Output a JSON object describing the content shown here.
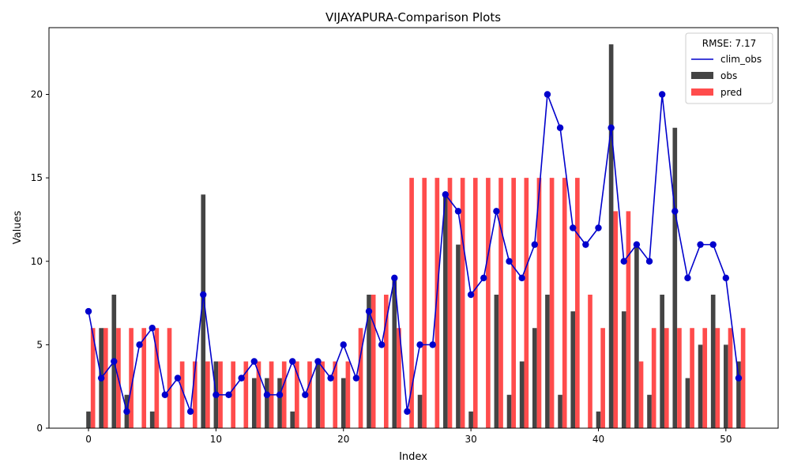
{
  "chart_data": {
    "type": "bar",
    "title": "VIJAYAPURA-Comparison Plots",
    "xlabel": "Index",
    "ylabel": "Values",
    "xlim": [
      -3.1,
      54.1
    ],
    "ylim": [
      0,
      24
    ],
    "xticks": [
      0,
      10,
      20,
      30,
      40,
      50
    ],
    "yticks": [
      0,
      5,
      10,
      15,
      20
    ],
    "grid": false,
    "legend": {
      "placement": "top-right",
      "title": "RMSE: 7.17"
    },
    "x": [
      0,
      1,
      2,
      3,
      4,
      5,
      6,
      7,
      8,
      9,
      10,
      11,
      12,
      13,
      14,
      15,
      16,
      17,
      18,
      19,
      20,
      21,
      22,
      23,
      24,
      25,
      26,
      27,
      28,
      29,
      30,
      31,
      32,
      33,
      34,
      35,
      36,
      37,
      38,
      39,
      40,
      41,
      42,
      43,
      44,
      45,
      46,
      47,
      48,
      49,
      50,
      51
    ],
    "series": [
      {
        "name": "clim_obs",
        "kind": "line",
        "color": "#0000cc",
        "values": [
          7,
          3,
          4,
          1,
          5,
          6,
          2,
          3,
          1,
          8,
          2,
          2,
          3,
          4,
          2,
          2,
          4,
          2,
          4,
          3,
          5,
          3,
          7,
          5,
          9,
          1,
          5,
          5,
          14,
          13,
          8,
          9,
          13,
          10,
          9,
          11,
          20,
          18,
          12,
          11,
          12,
          18,
          10,
          11,
          10,
          20,
          13,
          9,
          11,
          11,
          9,
          3
        ]
      },
      {
        "name": "obs",
        "kind": "bar",
        "color": "#444444",
        "values": [
          1,
          6,
          8,
          2,
          0,
          1,
          0,
          0,
          0,
          14,
          4,
          0,
          0,
          3,
          3,
          3,
          1,
          0,
          4,
          0,
          3,
          0,
          8,
          0,
          9,
          0,
          2,
          0,
          14,
          11,
          1,
          0,
          8,
          2,
          4,
          6,
          8,
          2,
          7,
          0,
          1,
          23,
          7,
          11,
          2,
          8,
          18,
          3,
          5,
          8,
          5,
          4
        ]
      },
      {
        "name": "pred",
        "kind": "bar",
        "color": "#ff4c4c",
        "values": [
          6,
          6,
          6,
          6,
          6,
          6,
          6,
          4,
          4,
          4,
          4,
          4,
          4,
          4,
          4,
          4,
          4,
          4,
          4,
          4,
          4,
          6,
          8,
          8,
          6,
          15,
          15,
          15,
          15,
          15,
          15,
          15,
          15,
          15,
          15,
          15,
          15,
          15,
          15,
          8,
          6,
          13,
          13,
          4,
          6,
          6,
          6,
          6,
          6,
          6,
          6,
          6
        ]
      }
    ]
  }
}
